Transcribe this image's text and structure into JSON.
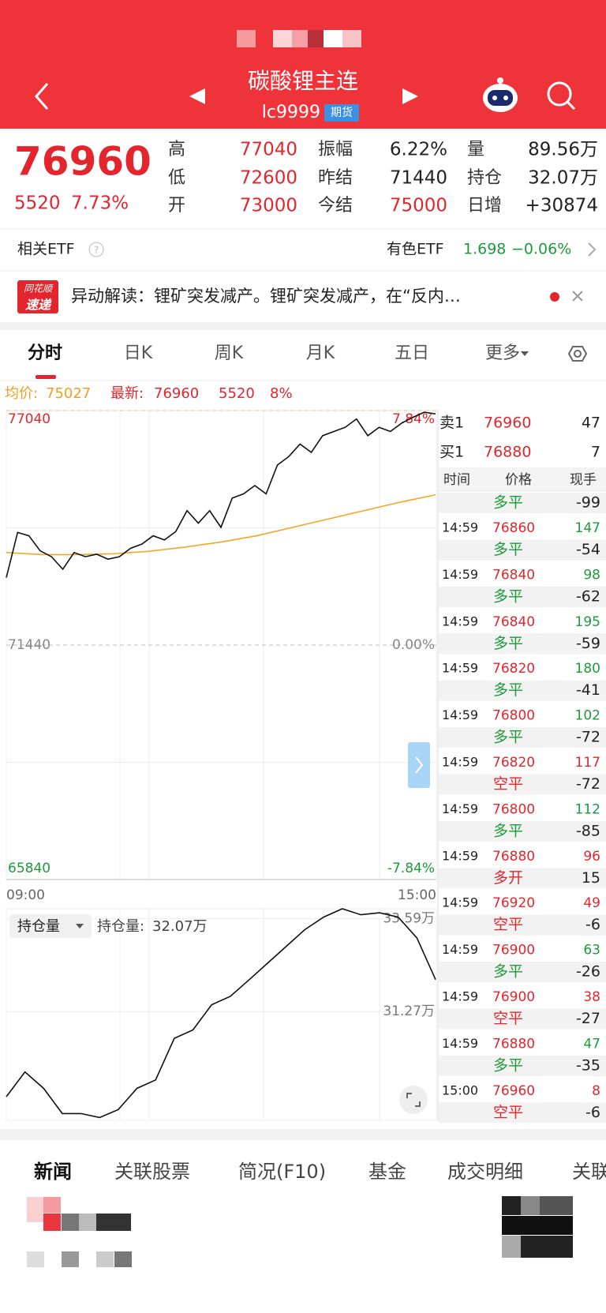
{
  "header": {
    "title": "碳酸锂主连",
    "code": "lc9999",
    "badge": "期货"
  },
  "quote": {
    "price": 76960,
    "change": 5520,
    "change_pct": "7.73%",
    "fields": [
      {
        "label": "高",
        "value": 77040
      },
      {
        "label": "低",
        "value": 72600
      },
      {
        "label": "开",
        "value": 73000
      },
      {
        "label": "振幅",
        "value": "6.22%"
      },
      {
        "label": "昨结",
        "value": 71440
      },
      {
        "label": "今结",
        "value": 75000
      },
      {
        "label": "量",
        "value": "89.56万"
      },
      {
        "label": "持仓",
        "value": "32.07万"
      },
      {
        "label": "日增",
        "value": "+30874"
      }
    ]
  },
  "etf": {
    "label": "相关ETF",
    "name": "有色ETF",
    "price": 1.698,
    "change": "−0.06%"
  },
  "news": {
    "logo_top": "同花顺",
    "logo_bottom": "速递",
    "text": "异动解读：锂矿突发减产。锂矿突发减产，在“反内…"
  },
  "tabs": [
    "分时",
    "日K",
    "周K",
    "月K",
    "五日",
    "更多"
  ],
  "intraday": {
    "avg_label": "均价:",
    "avg": 75027,
    "latest_label": "最新:",
    "latest": 76960,
    "change": 5520,
    "change_pct": "8%",
    "ylim": [
      65840,
      77040
    ],
    "yticks": [
      77040,
      71440,
      65840
    ],
    "pct_labels": [
      "7.84%",
      "0.00%",
      "-7.84%"
    ],
    "xlabels": [
      "09:00",
      "15:00"
    ],
    "price": {
      "color": "#111111",
      "values": [
        73050,
        74130,
        74050,
        73690,
        73550,
        73250,
        73650,
        73550,
        73610,
        73490,
        73550,
        73750,
        73850,
        74050,
        73950,
        74150,
        74650,
        74350,
        74650,
        74250,
        74950,
        75050,
        75250,
        75050,
        75740,
        75940,
        76240,
        76040,
        76440,
        76540,
        76640,
        76840,
        76440,
        76640,
        76540,
        76740,
        76880,
        77000,
        76960
      ]
    },
    "avg_line": {
      "color": "#f5a623",
      "values": [
        73650,
        73600,
        73600,
        73620,
        73680,
        73780,
        73900,
        74050,
        74250,
        74450,
        74650,
        74850,
        75027
      ]
    }
  },
  "oi": {
    "selector": "持仓量",
    "label": "持仓量:",
    "value": "32.07万",
    "ylim": [
      28.55,
      33.84
    ],
    "yticks": [
      {
        "value": 33.59,
        "label": "33.59万"
      },
      {
        "value": 31.27,
        "label": "31.27万"
      }
    ],
    "color": "#111111",
    "values": [
      29.14,
      29.76,
      29.35,
      28.72,
      28.72,
      28.62,
      28.82,
      29.35,
      29.56,
      30.6,
      30.81,
      31.44,
      31.65,
      32.06,
      32.48,
      32.9,
      33.32,
      33.63,
      33.84,
      33.69,
      33.74,
      33.63,
      33.11,
      32.07
    ]
  },
  "order_book": [
    {
      "side": "卖1",
      "price": 76960,
      "qty": 47
    },
    {
      "side": "买1",
      "price": 76880,
      "qty": 7
    }
  ],
  "trades": {
    "headers": [
      "时间",
      "价格",
      "现手"
    ],
    "rows": [
      {
        "type": "多平",
        "type_color": "#1c9a3c",
        "hand": -99
      },
      {
        "time": "14:59",
        "price": 76860,
        "vol": 147,
        "color": "#1c9a3c",
        "type": "多平",
        "type_color": "#1c9a3c",
        "hand": -54
      },
      {
        "time": "14:59",
        "price": 76840,
        "vol": 98,
        "color": "#1c9a3c",
        "type": "多平",
        "type_color": "#1c9a3c",
        "hand": -62
      },
      {
        "time": "14:59",
        "price": 76840,
        "vol": 195,
        "color": "#1c9a3c",
        "type": "多平",
        "type_color": "#1c9a3c",
        "hand": -59
      },
      {
        "time": "14:59",
        "price": 76820,
        "vol": 180,
        "color": "#1c9a3c",
        "type": "多平",
        "type_color": "#1c9a3c",
        "hand": -41
      },
      {
        "time": "14:59",
        "price": 76800,
        "vol": 102,
        "color": "#1c9a3c",
        "type": "多平",
        "type_color": "#1c9a3c",
        "hand": -72
      },
      {
        "time": "14:59",
        "price": 76820,
        "vol": 117,
        "color": "#e3262d",
        "type": "空平",
        "type_color": "#e3262d",
        "hand": -72
      },
      {
        "time": "14:59",
        "price": 76800,
        "vol": 112,
        "color": "#1c9a3c",
        "type": "多平",
        "type_color": "#1c9a3c",
        "hand": -85
      },
      {
        "time": "14:59",
        "price": 76880,
        "vol": 96,
        "color": "#e3262d",
        "type": "多开",
        "type_color": "#e3262d",
        "hand": 15
      },
      {
        "time": "14:59",
        "price": 76920,
        "vol": 49,
        "color": "#e3262d",
        "type": "空平",
        "type_color": "#e3262d",
        "hand": -6
      },
      {
        "time": "14:59",
        "price": 76900,
        "vol": 63,
        "color": "#1c9a3c",
        "type": "多平",
        "type_color": "#1c9a3c",
        "hand": -26
      },
      {
        "time": "14:59",
        "price": 76900,
        "vol": 38,
        "color": "#e3262d",
        "type": "空平",
        "type_color": "#e3262d",
        "hand": -27
      },
      {
        "time": "14:59",
        "price": 76880,
        "vol": 47,
        "color": "#1c9a3c",
        "type": "多平",
        "type_color": "#1c9a3c",
        "hand": -35
      },
      {
        "time": "15:00",
        "price": 76960,
        "vol": 8,
        "color": "#e3262d",
        "type": "空平",
        "type_color": "#e3262d",
        "hand": -6
      }
    ]
  },
  "bottom_tabs": [
    "新闻",
    "关联股票",
    "简况(F10)",
    "基金",
    "成交明细",
    "关联"
  ]
}
